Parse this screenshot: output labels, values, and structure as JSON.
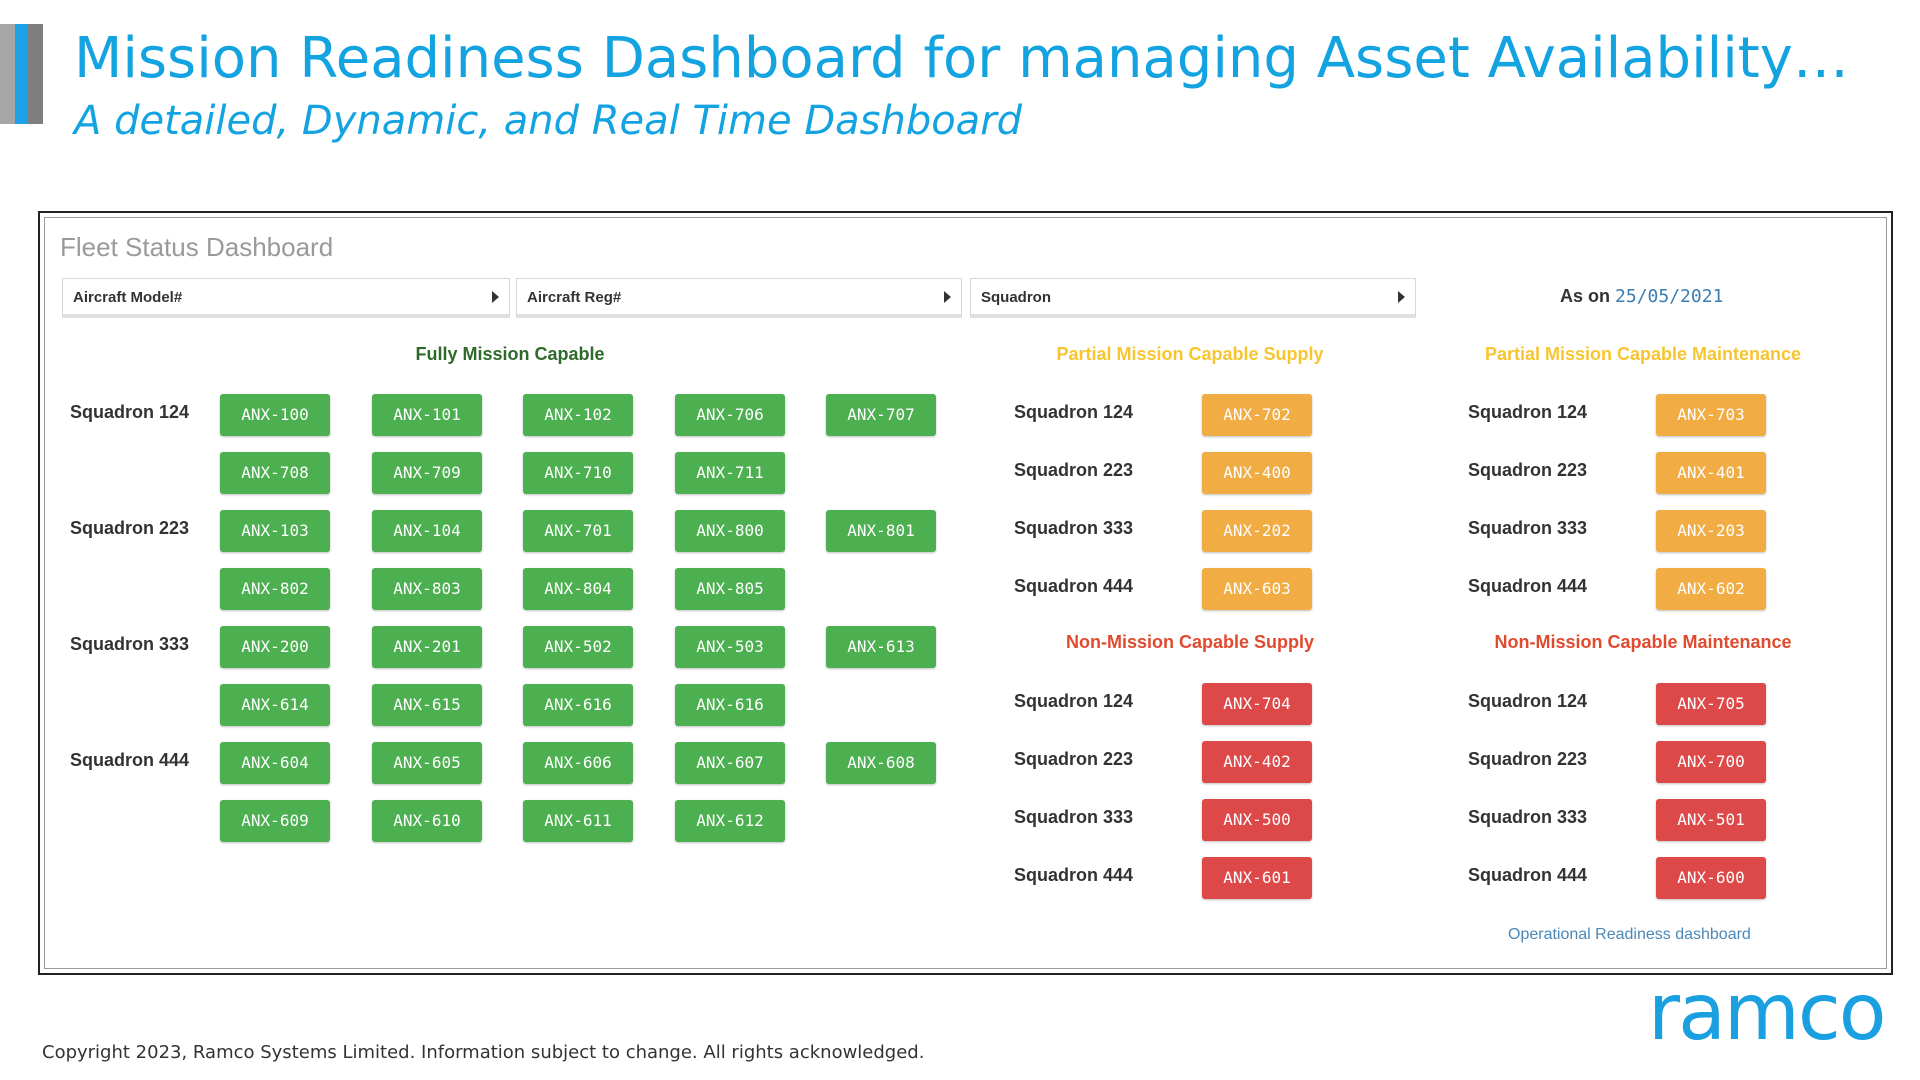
{
  "header": {
    "title": "Mission Readiness Dashboard for managing Asset Availability…",
    "subtitle": "A detailed, Dynamic, and Real Time Dashboard"
  },
  "dashboard": {
    "title": "Fleet Status Dashboard",
    "filters": [
      "Aircraft Model#",
      "Aircraft Reg#",
      "Squadron"
    ],
    "as_on_label": "As on",
    "as_on_date": "25/05/2021",
    "link": "Operational Readiness dashboard"
  },
  "colors": {
    "accent": "#13a3e0",
    "fully_capable": "#4caf50",
    "partial": "#f2ac44",
    "non_capable": "#dd4848"
  },
  "fully_mission_capable": {
    "title": "Fully Mission Capable",
    "groups": [
      {
        "squadron": "Squadron 124",
        "rows": [
          [
            "ANX-100",
            "ANX-101",
            "ANX-102",
            "ANX-706",
            "ANX-707"
          ],
          [
            "ANX-708",
            "ANX-709",
            "ANX-710",
            "ANX-711"
          ]
        ]
      },
      {
        "squadron": "Squadron 223",
        "rows": [
          [
            "ANX-103",
            "ANX-104",
            "ANX-701",
            "ANX-800",
            "ANX-801"
          ],
          [
            "ANX-802",
            "ANX-803",
            "ANX-804",
            "ANX-805"
          ]
        ]
      },
      {
        "squadron": "Squadron 333",
        "rows": [
          [
            "ANX-200",
            "ANX-201",
            "ANX-502",
            "ANX-503",
            "ANX-613"
          ],
          [
            "ANX-614",
            "ANX-615",
            "ANX-616",
            "ANX-616"
          ]
        ]
      },
      {
        "squadron": "Squadron 444",
        "rows": [
          [
            "ANX-604",
            "ANX-605",
            "ANX-606",
            "ANX-607",
            "ANX-608"
          ],
          [
            "ANX-609",
            "ANX-610",
            "ANX-611",
            "ANX-612"
          ]
        ]
      }
    ]
  },
  "partial_supply": {
    "title": "Partial Mission Capable Supply",
    "items": [
      {
        "squadron": "Squadron 124",
        "tail": "ANX-702"
      },
      {
        "squadron": "Squadron 223",
        "tail": "ANX-400"
      },
      {
        "squadron": "Squadron 333",
        "tail": "ANX-202"
      },
      {
        "squadron": "Squadron 444",
        "tail": "ANX-603"
      }
    ]
  },
  "partial_maintenance": {
    "title": "Partial Mission Capable Maintenance",
    "items": [
      {
        "squadron": "Squadron 124",
        "tail": "ANX-703"
      },
      {
        "squadron": "Squadron 223",
        "tail": "ANX-401"
      },
      {
        "squadron": "Squadron 333",
        "tail": "ANX-203"
      },
      {
        "squadron": "Squadron 444",
        "tail": "ANX-602"
      }
    ]
  },
  "non_supply": {
    "title": "Non-Mission Capable Supply",
    "items": [
      {
        "squadron": "Squadron 124",
        "tail": "ANX-704"
      },
      {
        "squadron": "Squadron 223",
        "tail": "ANX-402"
      },
      {
        "squadron": "Squadron 333",
        "tail": "ANX-500"
      },
      {
        "squadron": "Squadron 444",
        "tail": "ANX-601"
      }
    ]
  },
  "non_maintenance": {
    "title": "Non-Mission Capable Maintenance",
    "items": [
      {
        "squadron": "Squadron 124",
        "tail": "ANX-705"
      },
      {
        "squadron": "Squadron 223",
        "tail": "ANX-700"
      },
      {
        "squadron": "Squadron 333",
        "tail": "ANX-501"
      },
      {
        "squadron": "Squadron 444",
        "tail": "ANX-600"
      }
    ]
  },
  "footer": {
    "logo_text": "ramco",
    "copyright": "Copyright 2023, Ramco Systems Limited. Information subject to change. All rights acknowledged."
  }
}
